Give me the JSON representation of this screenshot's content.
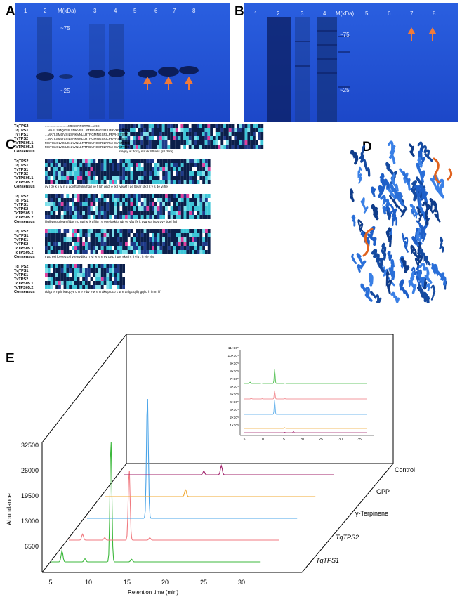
{
  "panels": {
    "A": "A",
    "B": "B",
    "C": "C",
    "D": "D",
    "E": "E"
  },
  "gel_a": {
    "lanes": [
      "1",
      "2",
      "M(kDa)",
      "3",
      "4",
      "5",
      "6",
      "7",
      "8"
    ],
    "markers": [
      "~75",
      "~25"
    ]
  },
  "gel_b": {
    "lanes": [
      "1",
      "2",
      "3",
      "4",
      "M(kDa)",
      "5",
      "6",
      "7",
      "8"
    ],
    "markers": [
      "~75",
      "~25"
    ]
  },
  "alignment": {
    "seq_names": [
      "TqTPS2",
      "TqTPS1",
      "TvTPS1",
      "TvTPS2",
      "TcTPS05.1",
      "TcTPS05.2",
      "Consensus"
    ],
    "block1_lines": [
      "..........................MESSRFSRTS...VKE",
      "...MASLSMQVSILSNKVNLLRTPGMNGSRILPRVHSYSTT",
      "...MATLSMQVSILSNKVNLLRTPGMNGSRILPRVHSYSTT",
      "...MATLSMQVSILSNKVNLLRTPGMNGSRILPRVHSYSTT",
      "MSTISMNVGILSNKVNLLRTPGMNGSRILPRVHSYSTTRG",
      "MSTISMNVGILSNKVNLLRTPGMNGSRILPRVHSYSTTRG"
    ],
    "consensus": [
      "rrsgny  w  ftqc    y        s li   vk ll tkess  gl  l dl nlg",
      "i y l de k li  iy         n q qdiyftsl folia hqd ve    f Ikh    qedf      e tk  l lyeasf  l qe tle ar  stk l k v s  de     vi he",
      "l lglhwrsrqrlearnfiday  r q np i sl k df iiq t   e  eve           laskigf rdr ve yfw    lfs k  gyqrs   a       isdv dvy tidel lftd",
      "r wd esi  lpyyeq cyl     y e  eydiiks    n iyl   w ie   e    ey qytp i wyl  sk ei s ti   vi t       t          h   yle    zla",
      "ddlgt  el rqdv ka qcye d  n  e   e  bv     e w e n aks p dcp  c  w e anlgc  qflly  gqhq  h  ih  m  l f"
    ]
  },
  "chromatogram": {
    "ylabel": "Abundance",
    "xlabel": "Retention time (min)",
    "y_ticks": [
      "32500",
      "26000",
      "19500",
      "13000",
      "6500"
    ],
    "x_ticks": [
      "5",
      "10",
      "15",
      "20",
      "25",
      "30"
    ],
    "traces": [
      "Control",
      "GPP",
      "γ-Terpinene",
      "TqTPS2",
      "TqTPS1"
    ],
    "inset_y_ticks": [
      "11×10⁵",
      "10×10⁵",
      "9×10⁵",
      "8×10⁵",
      "7×10⁵",
      "6×10⁵",
      "5×10⁵",
      "4×10⁵",
      "3×10⁵",
      "2×10⁵",
      "1×10⁵"
    ],
    "inset_x_ticks": [
      "5",
      "10",
      "15",
      "20",
      "25",
      "30",
      "35"
    ]
  },
  "colors": {
    "gel_bg": "#1f4fd6",
    "control": "#a0206a",
    "gpp": "#f0a830",
    "gamma": "#4aa4e8",
    "tqtps2": "#f07a80",
    "tqtps1": "#3cb83c",
    "arrow": "#f07b3a",
    "protein": "#1e5fc8",
    "protein_highlight": "#e0621e"
  },
  "chart_data": {
    "type": "line",
    "title": "",
    "xlabel": "Retention time (min)",
    "ylabel": "Abundance",
    "xlim": [
      5,
      35
    ],
    "ylim": [
      0,
      32500
    ],
    "series": [
      {
        "name": "TqTPS1",
        "peaks": [
          [
            6.5,
            2800
          ],
          [
            9.5,
            800
          ],
          [
            12.9,
            31000
          ],
          [
            15.6,
            700
          ]
        ]
      },
      {
        "name": "TqTPS2",
        "peaks": [
          [
            6.8,
            1500
          ],
          [
            9.7,
            600
          ],
          [
            12.9,
            18000
          ],
          [
            15.6,
            600
          ]
        ]
      },
      {
        "name": "γ-Terpinene",
        "peaks": [
          [
            12.9,
            31000
          ]
        ]
      },
      {
        "name": "GPP",
        "peaks": [
          [
            15.5,
            1800
          ]
        ]
      },
      {
        "name": "Control",
        "peaks": [
          [
            15.5,
            900
          ],
          [
            17.8,
            2300
          ]
        ]
      }
    ]
  }
}
